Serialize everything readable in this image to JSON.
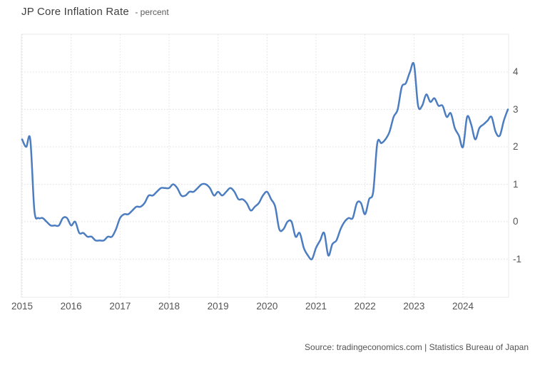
{
  "header": {
    "title": "JP Core Inflation Rate",
    "subtitle": "- percent"
  },
  "footer": {
    "source": "Source: tradingeconomics.com | Statistics Bureau of Japan"
  },
  "colors": {
    "line": "#4c7dc0",
    "grid": "#dfdfdf",
    "frame": "#e8e8e8",
    "axis_text": "#555555"
  },
  "chart_data": {
    "type": "line",
    "title": "JP Core Inflation Rate",
    "ylabel": "percent",
    "xlabel": "",
    "grid": true,
    "legend": "none",
    "x_ticks": [
      "2015",
      "2016",
      "2017",
      "2018",
      "2019",
      "2020",
      "2021",
      "2022",
      "2023",
      "2024"
    ],
    "y_ticks": [
      -1,
      0,
      1,
      2,
      3,
      4
    ],
    "ylim": [
      -2,
      5
    ],
    "x_start": "2015-01",
    "x_end": "2024-12",
    "frequency": "monthly",
    "series": [
      {
        "name": "JP Core Inflation Rate (percent, YoY)",
        "values": [
          2.2,
          2.0,
          2.2,
          0.3,
          0.1,
          0.1,
          0.0,
          -0.1,
          -0.1,
          -0.1,
          0.1,
          0.1,
          -0.1,
          0.0,
          -0.3,
          -0.3,
          -0.4,
          -0.4,
          -0.5,
          -0.5,
          -0.5,
          -0.4,
          -0.4,
          -0.2,
          0.1,
          0.2,
          0.2,
          0.3,
          0.4,
          0.4,
          0.5,
          0.7,
          0.7,
          0.8,
          0.9,
          0.9,
          0.9,
          1.0,
          0.9,
          0.7,
          0.7,
          0.8,
          0.8,
          0.9,
          1.0,
          1.0,
          0.9,
          0.7,
          0.8,
          0.7,
          0.8,
          0.9,
          0.8,
          0.6,
          0.6,
          0.5,
          0.3,
          0.4,
          0.5,
          0.7,
          0.8,
          0.6,
          0.4,
          -0.2,
          -0.2,
          0.0,
          0.0,
          -0.4,
          -0.3,
          -0.7,
          -0.9,
          -1.0,
          -0.7,
          -0.5,
          -0.3,
          -0.9,
          -0.6,
          -0.5,
          -0.2,
          0.0,
          0.1,
          0.1,
          0.5,
          0.5,
          0.2,
          0.6,
          0.8,
          2.1,
          2.1,
          2.2,
          2.4,
          2.8,
          3.0,
          3.6,
          3.7,
          4.0,
          4.2,
          3.1,
          3.1,
          3.4,
          3.2,
          3.3,
          3.1,
          3.1,
          2.8,
          2.9,
          2.5,
          2.3,
          2.0,
          2.8,
          2.6,
          2.2,
          2.5,
          2.6,
          2.7,
          2.8,
          2.4,
          2.3,
          2.7,
          3.0
        ]
      }
    ]
  }
}
